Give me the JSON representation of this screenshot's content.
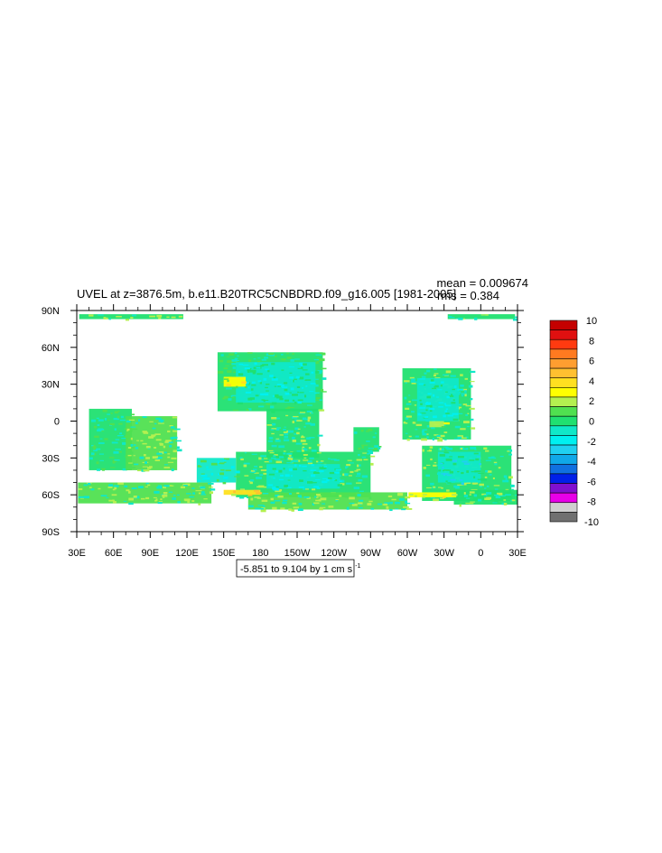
{
  "chart_data": {
    "type": "heatmap",
    "title": "UVEL at z=3876.5m, b.e11.B20TRC5CNBDRD.f09_g16.005 [1981-2005]",
    "stats": {
      "mean": "mean = 0.009674",
      "rms": "rms = 0.384"
    },
    "xlim": [
      30,
      390
    ],
    "ylim": [
      -90,
      90
    ],
    "x_ticks": [
      {
        "value": 30,
        "label": "30E"
      },
      {
        "value": 60,
        "label": "60E"
      },
      {
        "value": 90,
        "label": "90E"
      },
      {
        "value": 120,
        "label": "120E"
      },
      {
        "value": 150,
        "label": "150E"
      },
      {
        "value": 180,
        "label": "180"
      },
      {
        "value": 210,
        "label": "150W"
      },
      {
        "value": 240,
        "label": "120W"
      },
      {
        "value": 270,
        "label": "90W"
      },
      {
        "value": 300,
        "label": "60W"
      },
      {
        "value": 330,
        "label": "30W"
      },
      {
        "value": 360,
        "label": "0"
      },
      {
        "value": 390,
        "label": "30E"
      }
    ],
    "y_ticks": [
      {
        "value": 90,
        "label": "90N"
      },
      {
        "value": 60,
        "label": "60N"
      },
      {
        "value": 30,
        "label": "30N"
      },
      {
        "value": 0,
        "label": "0"
      },
      {
        "value": -30,
        "label": "30S"
      },
      {
        "value": -60,
        "label": "60S"
      },
      {
        "value": -90,
        "label": "90S"
      }
    ],
    "range_label": "-5.851 to 9.104 by 1 cm s",
    "range_label_sup": "-1",
    "colorbar": {
      "labels": [
        "10",
        "8",
        "6",
        "4",
        "2",
        "0",
        "-2",
        "-4",
        "-6",
        "-8",
        "-10"
      ],
      "colors": [
        "#c40000",
        "#e01010",
        "#ff3a10",
        "#ff7a20",
        "#ff9e30",
        "#ffc030",
        "#ffe020",
        "#ffff00",
        "#b4f050",
        "#50e050",
        "#20e070",
        "#10e8c8",
        "#00f0f0",
        "#20d0f0",
        "#10a8e8",
        "#1070e0",
        "#0020e8",
        "#8010d0",
        "#e800e8",
        "#d0d0d0",
        "#707070"
      ]
    },
    "regions": [
      {
        "name": "arctic-strip-west",
        "lon": [
          32,
          117
        ],
        "lat": [
          83,
          87
        ],
        "v": 0.3
      },
      {
        "name": "arctic-strip-east",
        "lon": [
          333,
          388
        ],
        "lat": [
          83,
          87
        ],
        "v": 0.3
      },
      {
        "name": "north-pacific",
        "lon": [
          145,
          231
        ],
        "lat": [
          8,
          56
        ],
        "v": 0.2
      },
      {
        "name": "north-pacific-core",
        "lon": [
          160,
          225
        ],
        "lat": [
          15,
          48
        ],
        "v": -0.8
      },
      {
        "name": "north-atlantic",
        "lon": [
          296,
          352
        ],
        "lat": [
          -15,
          43
        ],
        "v": 0.3
      },
      {
        "name": "north-atlantic-core",
        "lon": [
          308,
          342
        ],
        "lat": [
          0,
          35
        ],
        "v": -1.0
      },
      {
        "name": "equatorial-pacific",
        "lon": [
          185,
          228
        ],
        "lat": [
          -30,
          10
        ],
        "v": 0.4
      },
      {
        "name": "east-pacific-blob",
        "lon": [
          256,
          277
        ],
        "lat": [
          -25,
          -5
        ],
        "v": 0.1
      },
      {
        "name": "indian-ocean-west",
        "lon": [
          40,
          75
        ],
        "lat": [
          -40,
          10
        ],
        "v": 0.2
      },
      {
        "name": "indian-ocean-east",
        "lon": [
          70,
          112
        ],
        "lat": [
          -40,
          4
        ],
        "v": 0.5
      },
      {
        "name": "south-atlantic",
        "lon": [
          312,
          385
        ],
        "lat": [
          -65,
          -20
        ],
        "v": 0.3
      },
      {
        "name": "south-atlantic-core",
        "lon": [
          325,
          360
        ],
        "lat": [
          -50,
          -25
        ],
        "v": -1.2
      },
      {
        "name": "south-pacific",
        "lon": [
          160,
          270
        ],
        "lat": [
          -62,
          -25
        ],
        "v": 0.3
      },
      {
        "name": "south-pacific-core",
        "lon": [
          185,
          245
        ],
        "lat": [
          -55,
          -35
        ],
        "v": -0.9
      },
      {
        "name": "southern-ocean-indian",
        "lon": [
          31,
          140
        ],
        "lat": [
          -67,
          -50
        ],
        "v": 0.6
      },
      {
        "name": "southern-ocean-pacific",
        "lon": [
          170,
          300
        ],
        "lat": [
          -72,
          -58
        ],
        "v": 0.5
      },
      {
        "name": "southern-ocean-atlantic",
        "lon": [
          338,
          390
        ],
        "lat": [
          -68,
          -56
        ],
        "v": 0.4
      },
      {
        "name": "tasman",
        "lon": [
          128,
          160
        ],
        "lat": [
          -50,
          -30
        ],
        "v": -0.5
      },
      {
        "name": "kuroshio-jet",
        "lon": [
          150,
          168
        ],
        "lat": [
          28,
          36
        ],
        "v": 2.5
      },
      {
        "name": "acc-jet-1",
        "lon": [
          150,
          180
        ],
        "lat": [
          -60,
          -56
        ],
        "v": 3.5
      },
      {
        "name": "acc-jet-2",
        "lon": [
          301,
          340
        ],
        "lat": [
          -62,
          -58
        ],
        "v": 3.0
      },
      {
        "name": "gulf-stream-jet",
        "lon": [
          318,
          330
        ],
        "lat": [
          -5,
          0
        ],
        "v": 2.0
      }
    ]
  }
}
